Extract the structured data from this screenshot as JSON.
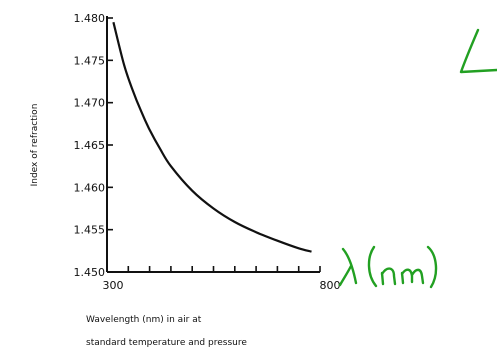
{
  "chart_data": {
    "type": "line",
    "title": "",
    "ylabel": "Index of refraction",
    "xlabel_lines": [
      "Wavelength (nm) in air at",
      "standard temperature and pressure"
    ],
    "xlim": [
      300,
      800
    ],
    "ylim": [
      1.45,
      1.48
    ],
    "x_tick_labels": [
      {
        "value": 300,
        "label": "300"
      },
      {
        "value": 800,
        "label": "800"
      }
    ],
    "x_minor_ticks": [
      350,
      400,
      450,
      500,
      550,
      600,
      650,
      700,
      750,
      800
    ],
    "y_ticks": [
      {
        "value": 1.45,
        "label": "1.450"
      },
      {
        "value": 1.455,
        "label": "1.455"
      },
      {
        "value": 1.46,
        "label": "1.460"
      },
      {
        "value": 1.465,
        "label": "1.465"
      },
      {
        "value": 1.47,
        "label": "1.470"
      },
      {
        "value": 1.475,
        "label": "1.475"
      },
      {
        "value": 1.48,
        "label": "1.480"
      }
    ],
    "series": [
      {
        "x": [
          315,
          340,
          360,
          380,
          400,
          425,
          450,
          500,
          550,
          600,
          650,
          700,
          750,
          780
        ],
        "y": [
          1.4795,
          1.4745,
          1.4715,
          1.469,
          1.4668,
          1.4645,
          1.4625,
          1.4596,
          1.4575,
          1.4559,
          1.4547,
          1.4537,
          1.4528,
          1.4524
        ],
        "color": "#111111"
      }
    ],
    "grid": false
  },
  "annotations": {
    "handwritten_axis_label": "λ(nm)",
    "ink_color": "#22a022"
  }
}
